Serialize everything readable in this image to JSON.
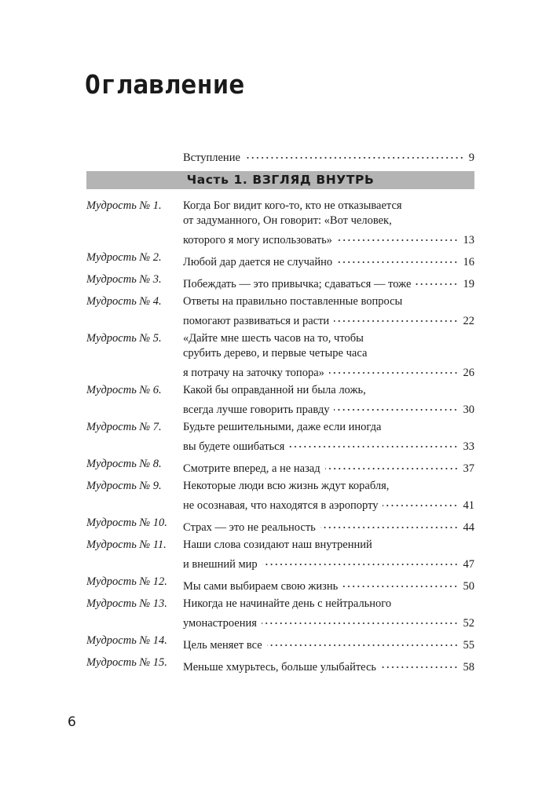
{
  "title": "Оглавление",
  "intro": {
    "label": "Вступление",
    "page": "9"
  },
  "part": "Часть 1. ВЗГЛЯД ВНУТРЬ",
  "entries": [
    {
      "label": "Мудрость № 1.",
      "lines": [
        "Когда Бог видит кого-то, кто не отказывается",
        "от задуманного, Он говорит: «Вот человек,",
        "которого я могу использовать»"
      ],
      "page": "13"
    },
    {
      "label": "Мудрость № 2.",
      "lines": [
        "Любой дар дается не случайно"
      ],
      "page": "16"
    },
    {
      "label": "Мудрость № 3.",
      "lines": [
        "Побеждать — это привычка; сдаваться — тоже"
      ],
      "page": "19"
    },
    {
      "label": "Мудрость № 4.",
      "lines": [
        "Ответы на правильно поставленные вопросы",
        "помогают развиваться и расти"
      ],
      "page": "22"
    },
    {
      "label": "Мудрость № 5.",
      "lines": [
        "«Дайте мне шесть часов на то, чтобы",
        "срубить дерево, и первые четыре часа",
        "я потрачу на заточку топора»"
      ],
      "page": "26"
    },
    {
      "label": "Мудрость № 6.",
      "lines": [
        "Какой бы оправданной ни была ложь,",
        "всегда лучше говорить правду"
      ],
      "page": "30"
    },
    {
      "label": "Мудрость № 7.",
      "lines": [
        "Будьте решительными, даже если иногда",
        "вы будете ошибаться"
      ],
      "page": "33"
    },
    {
      "label": "Мудрость № 8.",
      "lines": [
        "Смотрите вперед, а не назад"
      ],
      "page": "37"
    },
    {
      "label": "Мудрость № 9.",
      "lines": [
        "Некоторые люди всю жизнь ждут корабля,",
        "не осознавая, что находятся в аэропорту"
      ],
      "page": "41"
    },
    {
      "label": "Мудрость № 10.",
      "lines": [
        "Страх — это не реальность"
      ],
      "page": "44"
    },
    {
      "label": "Мудрость № 11.",
      "lines": [
        "Наши слова созидают наш внутренний",
        "и внешний мир"
      ],
      "page": "47"
    },
    {
      "label": "Мудрость № 12.",
      "lines": [
        "Мы сами выбираем свою жизнь"
      ],
      "page": "50"
    },
    {
      "label": "Мудрость № 13.",
      "lines": [
        "Никогда не начинайте день с нейтрального",
        "умонастроения"
      ],
      "page": "52"
    },
    {
      "label": "Мудрость № 14.",
      "lines": [
        "Цель меняет все"
      ],
      "page": "55"
    },
    {
      "label": "Мудрость № 15.",
      "lines": [
        "Меньше хмурьтесь, больше улыбайтесь"
      ],
      "page": "58"
    }
  ],
  "page_number": "6"
}
